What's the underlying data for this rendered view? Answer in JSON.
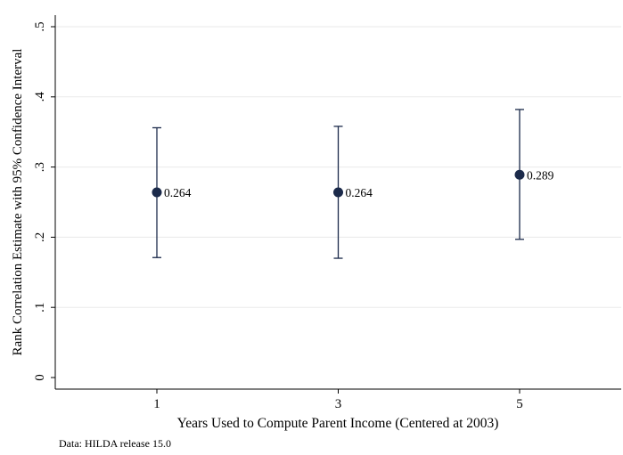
{
  "chart_data": {
    "type": "scatter",
    "title": "",
    "xlabel": "Years Used to Compute Parent Income (Centered at 2003)",
    "ylabel": "Rank Correlation Estimate with 95% Confidence Interval",
    "note": "Data: HILDA release 15.0",
    "x_ticks": [
      "1",
      "3",
      "5"
    ],
    "y_ticks": [
      "0",
      ".1",
      ".2",
      ".3",
      ".4",
      ".5"
    ],
    "ylim": [
      0,
      0.5
    ],
    "xlim": [
      0,
      6
    ],
    "grid": true,
    "points": [
      {
        "x": 1,
        "y": 0.264,
        "ci_low": 0.171,
        "ci_high": 0.356,
        "label": "0.264"
      },
      {
        "x": 3,
        "y": 0.264,
        "ci_low": 0.17,
        "ci_high": 0.358,
        "label": "0.264"
      },
      {
        "x": 5,
        "y": 0.289,
        "ci_low": 0.197,
        "ci_high": 0.382,
        "label": "0.289"
      }
    ],
    "marker_color": "#1b2a4a"
  }
}
